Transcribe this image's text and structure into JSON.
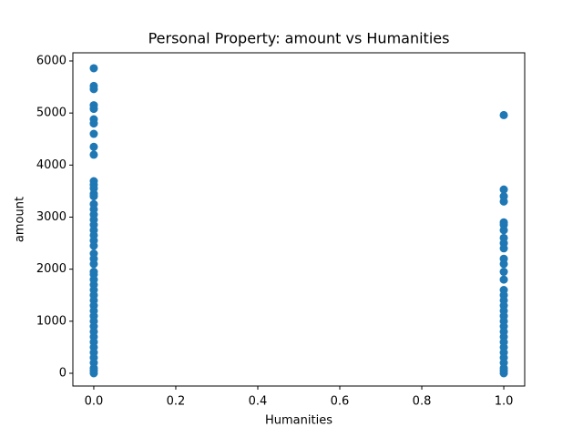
{
  "chart_data": {
    "type": "scatter",
    "title": "Personal Property: amount vs Humanities",
    "x_label": "Humanities",
    "y_label": "amount",
    "color": "#1f77b4",
    "xlim": [
      -0.051,
      1.051
    ],
    "ylim": [
      -245,
      6157
    ],
    "xticks": [
      {
        "value": 0,
        "label": "0.0"
      },
      0.2,
      0.4,
      0.6,
      0.8,
      {
        "value": 1,
        "label": "1.0"
      }
    ],
    "yticks": [
      0,
      1000,
      2000,
      3000,
      4000,
      5000,
      6000
    ],
    "x": [
      0,
      0,
      0,
      0,
      0,
      0,
      0,
      0,
      0,
      0,
      0,
      0,
      0,
      0,
      0,
      0,
      0,
      0,
      0,
      0,
      0,
      0,
      0,
      0,
      0,
      0,
      0,
      0,
      0,
      0,
      0,
      0,
      0,
      0,
      0,
      0,
      0,
      0,
      0,
      0,
      0,
      0,
      0,
      0,
      0,
      0,
      0,
      0,
      0,
      1,
      1,
      1,
      1,
      1,
      1,
      1,
      1,
      1,
      1,
      1,
      1,
      1,
      1,
      1,
      1,
      1,
      1,
      1,
      1,
      1,
      1,
      1,
      1,
      1,
      1,
      1,
      1,
      1,
      1,
      1,
      1
    ],
    "values": [
      5860,
      5520,
      5460,
      5150,
      5080,
      4880,
      4800,
      4600,
      4350,
      4200,
      3690,
      3620,
      3550,
      3450,
      3400,
      3250,
      3150,
      3050,
      2950,
      2850,
      2750,
      2650,
      2550,
      2450,
      2300,
      2200,
      2100,
      1950,
      1900,
      1800,
      1700,
      1600,
      1500,
      1400,
      1300,
      1200,
      1100,
      1000,
      900,
      800,
      700,
      600,
      500,
      400,
      300,
      200,
      100,
      50,
      0,
      4960,
      3530,
      3400,
      3300,
      2900,
      2850,
      2750,
      2600,
      2500,
      2400,
      2200,
      2100,
      1950,
      1800,
      1600,
      1500,
      1400,
      1300,
      1200,
      1100,
      1000,
      900,
      800,
      700,
      600,
      500,
      400,
      300,
      200,
      100,
      50,
      0
    ]
  }
}
